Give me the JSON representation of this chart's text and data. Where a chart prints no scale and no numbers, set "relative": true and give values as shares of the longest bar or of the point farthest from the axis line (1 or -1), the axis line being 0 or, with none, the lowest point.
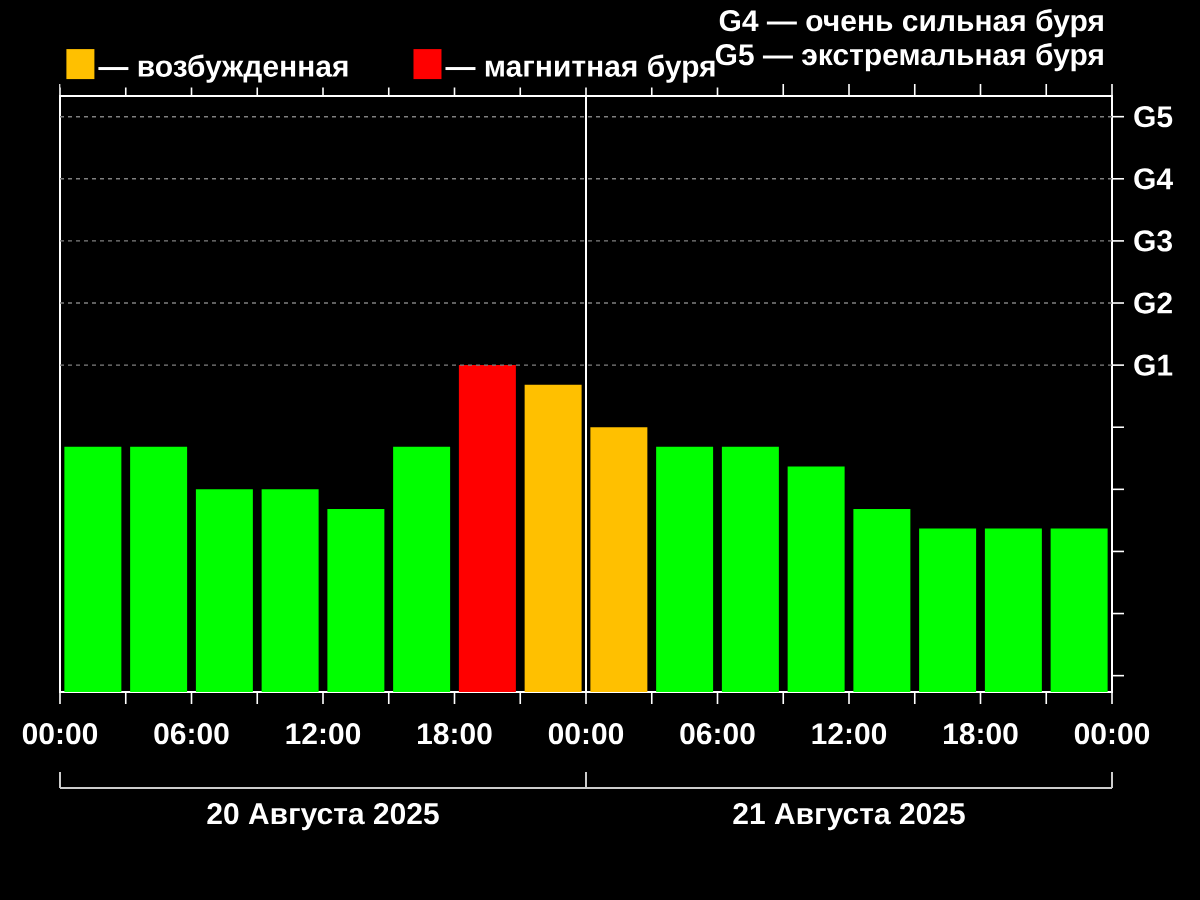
{
  "chart_data": {
    "type": "bar",
    "relative": true,
    "x": [
      "2025-08-20T01:30",
      "2025-08-20T04:30",
      "2025-08-20T07:30",
      "2025-08-20T10:30",
      "2025-08-20T13:30",
      "2025-08-20T16:30",
      "2025-08-20T19:30",
      "2025-08-20T22:30",
      "2025-08-21T01:30",
      "2025-08-21T04:30",
      "2025-08-21T07:30",
      "2025-08-21T10:30",
      "2025-08-21T13:30",
      "2025-08-21T16:30",
      "2025-08-21T19:30",
      "2025-08-21T22:30"
    ],
    "series": [
      {
        "color": "#00ff00",
        "values": [
          0.75,
          0.75,
          0.62,
          0.62,
          0.56,
          0.75,
          null,
          null,
          null,
          0.75,
          0.75,
          0.69,
          0.56,
          0.5,
          0.5,
          0.5
        ]
      },
      {
        "name": "— возбужденная",
        "color": "#ffc000",
        "values": [
          null,
          null,
          null,
          null,
          null,
          null,
          null,
          0.94,
          0.81,
          null,
          null,
          null,
          null,
          null,
          null,
          null
        ]
      },
      {
        "name": "— магнитная буря",
        "color": "#ff0000",
        "values": [
          null,
          null,
          null,
          null,
          null,
          null,
          1,
          null,
          null,
          null,
          null,
          null,
          null,
          null,
          null,
          null
        ]
      }
    ],
    "xlim": [
      "2025-08-20T00:00",
      "2025-08-22T00:00"
    ],
    "xticks": [
      {
        "value": "2025-08-20T00:00",
        "label": "00:00"
      },
      {
        "value": "2025-08-20T03:00",
        "label": null
      },
      {
        "value": "2025-08-20T06:00",
        "label": "06:00"
      },
      {
        "value": "2025-08-20T09:00",
        "label": null
      },
      {
        "value": "2025-08-20T12:00",
        "label": "12:00"
      },
      {
        "value": "2025-08-20T15:00",
        "label": null
      },
      {
        "value": "2025-08-20T18:00",
        "label": "18:00"
      },
      {
        "value": "2025-08-20T21:00",
        "label": null
      },
      {
        "value": "2025-08-21T00:00",
        "label": "00:00"
      },
      {
        "value": "2025-08-21T03:00",
        "label": null
      },
      {
        "value": "2025-08-21T06:00",
        "label": "06:00"
      },
      {
        "value": "2025-08-21T09:00",
        "label": null
      },
      {
        "value": "2025-08-21T12:00",
        "label": "12:00"
      },
      {
        "value": "2025-08-21T15:00",
        "label": null
      },
      {
        "value": "2025-08-21T18:00",
        "label": "18:00"
      },
      {
        "value": "2025-08-21T21:00",
        "label": null
      },
      {
        "value": "2025-08-22T00:00",
        "label": "00:00"
      }
    ],
    "ref_lines": [
      {
        "axis": "y",
        "value": 1,
        "label": "G1",
        "color": "#808080",
        "line_style": "dashed"
      },
      {
        "axis": "y",
        "value": 1.19,
        "label": "G2",
        "color": "#808080",
        "line_style": "dashed"
      },
      {
        "axis": "y",
        "value": 1.38,
        "label": "G3",
        "color": "#808080",
        "line_style": "dashed"
      },
      {
        "axis": "y",
        "value": 1.57,
        "label": "G4",
        "color": "#808080",
        "line_style": "dashed"
      },
      {
        "axis": "y",
        "value": 1.76,
        "label": "G5",
        "color": "#808080",
        "line_style": "dashed"
      },
      {
        "axis": "x",
        "value": "2025-08-21T00:00",
        "color": "#ffffff",
        "line_style": "solid"
      }
    ],
    "annotations": [
      "G4 — очень сильная буря",
      "G5 — экстремальная буря",
      "20 Августа 2025",
      "21 Августа 2025"
    ],
    "legend": "top"
  }
}
